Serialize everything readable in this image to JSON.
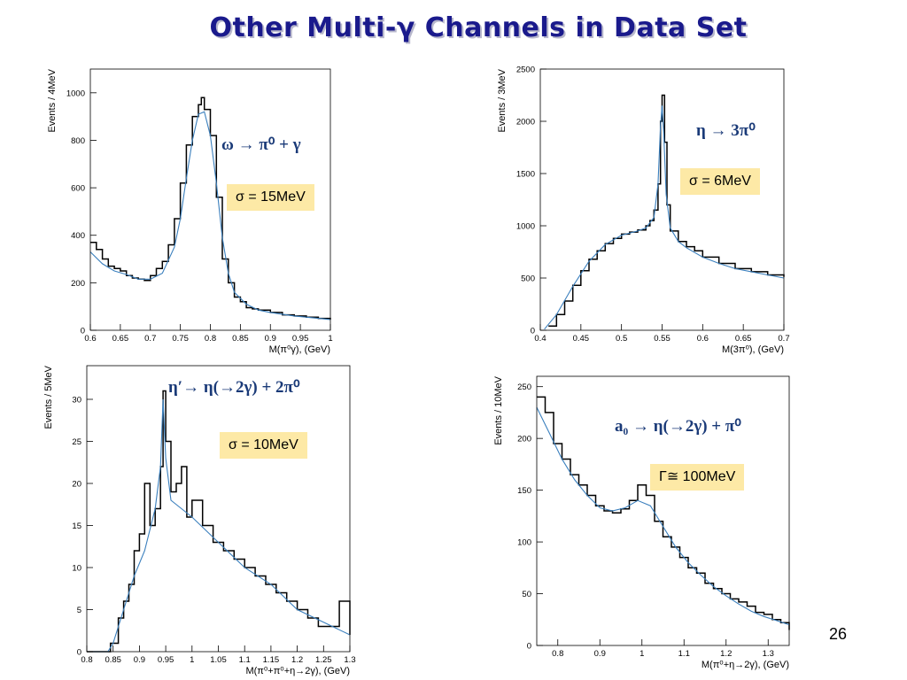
{
  "slide": {
    "title": "Other Multi-γ Channels in Data Set",
    "page_number": "26"
  },
  "panels": [
    {
      "reaction": "ω  → π⁰ + γ",
      "sigma_label": "σ = 15MeV"
    },
    {
      "reaction": "η  → 3π⁰",
      "sigma_label": "σ = 6MeV"
    },
    {
      "reaction": "η′→ η(→2γ) + 2π⁰",
      "sigma_label": "σ = 10MeV"
    },
    {
      "reaction": "a₀ → η(→2γ) + π⁰",
      "sigma_label": "Γ≅ 100MeV"
    }
  ],
  "chart_data": [
    {
      "type": "histogram",
      "title": "",
      "xlabel": "M(π⁰γ),  (GeV)",
      "ylabel": "Events / 4MeV",
      "xlim": [
        0.6,
        1.0
      ],
      "ylim": [
        0,
        1100
      ],
      "xticks": [
        "0.6",
        "0.65",
        "0.7",
        "0.75",
        "0.8",
        "0.85",
        "0.9",
        "0.95",
        "1"
      ],
      "xtick_values": [
        0.6,
        0.65,
        0.7,
        0.75,
        0.8,
        0.85,
        0.9,
        0.95,
        1.0
      ],
      "yticks": [
        "0",
        "200",
        "400",
        "600",
        "800",
        "1000"
      ],
      "ytick_values": [
        0,
        200,
        400,
        600,
        800,
        1000
      ],
      "bin_width": 0.004,
      "x": [
        0.6,
        0.61,
        0.62,
        0.63,
        0.64,
        0.65,
        0.66,
        0.67,
        0.68,
        0.69,
        0.7,
        0.71,
        0.72,
        0.73,
        0.74,
        0.75,
        0.76,
        0.77,
        0.78,
        0.785,
        0.79,
        0.8,
        0.81,
        0.82,
        0.83,
        0.84,
        0.85,
        0.86,
        0.87,
        0.88,
        0.9,
        0.92,
        0.94,
        0.96,
        0.98,
        1.0
      ],
      "values": [
        370,
        340,
        300,
        270,
        260,
        250,
        230,
        220,
        215,
        210,
        230,
        260,
        290,
        360,
        470,
        620,
        780,
        900,
        950,
        980,
        930,
        820,
        560,
        300,
        200,
        140,
        120,
        95,
        90,
        85,
        75,
        65,
        60,
        55,
        50,
        45
      ],
      "fit": {
        "x": [
          0.6,
          0.62,
          0.64,
          0.66,
          0.68,
          0.7,
          0.72,
          0.74,
          0.75,
          0.76,
          0.77,
          0.78,
          0.79,
          0.8,
          0.81,
          0.82,
          0.83,
          0.84,
          0.86,
          0.88,
          0.9,
          0.94,
          0.98,
          1.0
        ],
        "y": [
          330,
          280,
          250,
          235,
          215,
          215,
          240,
          350,
          470,
          640,
          800,
          910,
          920,
          820,
          620,
          390,
          240,
          160,
          110,
          85,
          75,
          60,
          50,
          45
        ]
      }
    },
    {
      "type": "histogram",
      "title": "",
      "xlabel": "M(3π⁰),  (GeV)",
      "ylabel": "Events / 3MeV",
      "xlim": [
        0.4,
        0.7
      ],
      "ylim": [
        0,
        2500
      ],
      "xticks": [
        "0.4",
        "0.45",
        "0.5",
        "0.55",
        "0.6",
        "0.65",
        "0.7"
      ],
      "xtick_values": [
        0.4,
        0.45,
        0.5,
        0.55,
        0.6,
        0.65,
        0.7
      ],
      "yticks": [
        "0",
        "500",
        "1000",
        "1500",
        "2000",
        "2500"
      ],
      "ytick_values": [
        0,
        500,
        1000,
        1500,
        2000,
        2500
      ],
      "bin_width": 0.003,
      "x": [
        0.41,
        0.42,
        0.43,
        0.44,
        0.45,
        0.46,
        0.47,
        0.48,
        0.49,
        0.5,
        0.51,
        0.52,
        0.53,
        0.535,
        0.54,
        0.545,
        0.548,
        0.55,
        0.553,
        0.556,
        0.56,
        0.57,
        0.58,
        0.59,
        0.6,
        0.62,
        0.64,
        0.66,
        0.68,
        0.7
      ],
      "values": [
        40,
        150,
        280,
        430,
        570,
        680,
        760,
        830,
        880,
        920,
        940,
        960,
        1000,
        1050,
        1150,
        1400,
        2000,
        2250,
        1800,
        1200,
        950,
        850,
        800,
        760,
        700,
        640,
        590,
        560,
        530,
        510
      ],
      "fit": {
        "x": [
          0.405,
          0.42,
          0.44,
          0.46,
          0.48,
          0.5,
          0.52,
          0.53,
          0.54,
          0.545,
          0.548,
          0.55,
          0.552,
          0.555,
          0.56,
          0.57,
          0.58,
          0.6,
          0.62,
          0.64,
          0.66,
          0.68,
          0.7
        ],
        "y": [
          10,
          150,
          420,
          660,
          820,
          910,
          950,
          980,
          1080,
          1400,
          1950,
          2150,
          1900,
          1300,
          980,
          850,
          790,
          700,
          640,
          590,
          560,
          530,
          500
        ]
      }
    },
    {
      "type": "histogram",
      "title": "",
      "xlabel": "M(π⁰+π⁰+η→2γ),  (GeV)",
      "ylabel": "Events / 5MeV",
      "xlim": [
        0.8,
        1.3
      ],
      "ylim": [
        0,
        34
      ],
      "xticks": [
        "0.8",
        "0.85",
        "0.9",
        "0.95",
        "1",
        "1.05",
        "1.1",
        "1.15",
        "1.2",
        "1.25",
        "1.3"
      ],
      "xtick_values": [
        0.8,
        0.85,
        0.9,
        0.95,
        1.0,
        1.05,
        1.1,
        1.15,
        1.2,
        1.25,
        1.3
      ],
      "yticks": [
        "0",
        "5",
        "10",
        "15",
        "20",
        "25",
        "30"
      ],
      "ytick_values": [
        0,
        5,
        10,
        15,
        20,
        25,
        30
      ],
      "bin_width": 0.005,
      "x": [
        0.8,
        0.83,
        0.845,
        0.86,
        0.87,
        0.88,
        0.89,
        0.9,
        0.91,
        0.92,
        0.93,
        0.94,
        0.945,
        0.95,
        0.96,
        0.97,
        0.98,
        0.99,
        1.0,
        1.02,
        1.04,
        1.06,
        1.08,
        1.1,
        1.12,
        1.14,
        1.16,
        1.18,
        1.2,
        1.22,
        1.24,
        1.26,
        1.28,
        1.3
      ],
      "values": [
        0,
        0,
        1,
        4,
        6,
        8,
        12,
        14,
        20,
        15,
        17,
        22,
        31,
        25,
        19,
        20,
        22,
        16,
        18,
        15,
        13,
        12,
        11,
        10,
        9,
        8,
        7,
        6,
        5,
        4,
        3,
        3,
        6,
        2
      ],
      "fit": {
        "x": [
          0.8,
          0.84,
          0.85,
          0.87,
          0.89,
          0.91,
          0.93,
          0.94,
          0.945,
          0.95,
          0.96,
          0.98,
          1.0,
          1.05,
          1.1,
          1.15,
          1.2,
          1.25,
          1.3
        ],
        "y": [
          0,
          0,
          1,
          5,
          9,
          12,
          17,
          22,
          30,
          23,
          18,
          17,
          16,
          13,
          10,
          8,
          5,
          3.5,
          2
        ]
      }
    },
    {
      "type": "histogram",
      "title": "",
      "xlabel": "M(π⁰+η→2γ),  (GeV)",
      "ylabel": "Events / 10MeV",
      "xlim": [
        0.75,
        1.35
      ],
      "ylim": [
        0,
        260
      ],
      "xticks": [
        "0.8",
        "0.9",
        "1",
        "1.1",
        "1.2",
        "1.3"
      ],
      "xtick_values": [
        0.8,
        0.9,
        1.0,
        1.1,
        1.2,
        1.3
      ],
      "yticks": [
        "0",
        "50",
        "100",
        "150",
        "200",
        "250"
      ],
      "ytick_values": [
        0,
        50,
        100,
        150,
        200,
        250
      ],
      "bin_width": 0.01,
      "x": [
        0.75,
        0.77,
        0.79,
        0.81,
        0.83,
        0.85,
        0.87,
        0.89,
        0.91,
        0.93,
        0.95,
        0.97,
        0.99,
        1.01,
        1.03,
        1.05,
        1.07,
        1.09,
        1.11,
        1.13,
        1.15,
        1.17,
        1.19,
        1.21,
        1.23,
        1.25,
        1.27,
        1.29,
        1.31,
        1.33,
        1.35
      ],
      "values": [
        240,
        225,
        195,
        180,
        165,
        155,
        145,
        135,
        130,
        128,
        132,
        140,
        155,
        145,
        120,
        105,
        95,
        85,
        75,
        70,
        60,
        55,
        50,
        45,
        42,
        38,
        32,
        30,
        25,
        22,
        15
      ],
      "fit": {
        "x": [
          0.75,
          0.78,
          0.81,
          0.84,
          0.87,
          0.9,
          0.93,
          0.96,
          0.99,
          1.02,
          1.05,
          1.08,
          1.11,
          1.14,
          1.17,
          1.2,
          1.23,
          1.26,
          1.29,
          1.32,
          1.35
        ],
        "y": [
          230,
          205,
          180,
          160,
          145,
          133,
          130,
          133,
          140,
          135,
          115,
          95,
          80,
          68,
          57,
          48,
          40,
          33,
          28,
          24,
          20
        ]
      }
    }
  ]
}
